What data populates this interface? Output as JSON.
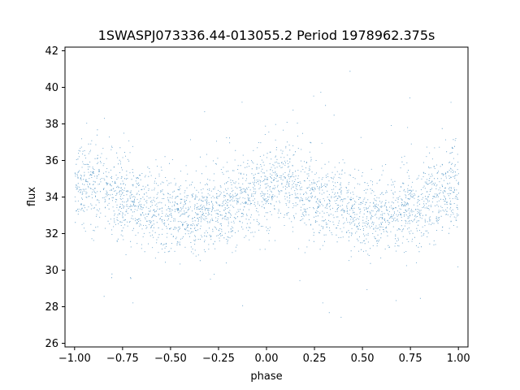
{
  "chart_data": {
    "type": "scatter",
    "title": "1SWASPJ073336.44-013055.2 Period 1978962.375s",
    "xlabel": "phase",
    "ylabel": "flux",
    "xlim": [
      -1.05,
      1.05
    ],
    "ylim": [
      25.8,
      42.2
    ],
    "x_ticks": [
      -1.0,
      -0.75,
      -0.5,
      -0.25,
      0.0,
      0.25,
      0.5,
      0.75,
      1.0
    ],
    "x_tick_labels": [
      "−1.00",
      "−0.75",
      "−0.50",
      "−0.25",
      "0.00",
      "0.25",
      "0.50",
      "0.75",
      "1.00"
    ],
    "y_ticks": [
      26,
      28,
      30,
      32,
      34,
      36,
      38,
      40,
      42
    ],
    "y_tick_labels": [
      "26",
      "28",
      "30",
      "32",
      "34",
      "36",
      "38",
      "40",
      "42"
    ],
    "grid": false,
    "legend": "none",
    "point_color": "#1f77b4",
    "series": [
      {
        "profile": {
          "phase": [
            -1.0,
            -0.9,
            -0.8,
            -0.7,
            -0.6,
            -0.5,
            -0.4,
            -0.3,
            -0.2,
            -0.1,
            0.0,
            0.1,
            0.2,
            0.3,
            0.4,
            0.5,
            0.6,
            0.7,
            0.8,
            0.9,
            1.0
          ],
          "mean_flux": [
            34.6,
            34.8,
            34.2,
            33.7,
            33.6,
            33.1,
            33.0,
            33.2,
            33.6,
            34.0,
            34.6,
            34.8,
            34.2,
            33.7,
            33.6,
            33.1,
            33.0,
            33.2,
            33.6,
            34.0,
            34.6
          ],
          "scatter_sd": [
            1.0,
            1.2,
            1.2,
            1.1,
            1.0,
            1.0,
            1.0,
            1.0,
            1.0,
            1.1,
            1.2,
            1.2,
            1.2,
            1.1,
            1.0,
            1.0,
            1.0,
            1.0,
            1.0,
            1.1,
            1.2
          ]
        },
        "approx_point_count": 12000,
        "x_range": [
          -1.0,
          1.0
        ],
        "y_range": [
          26.5,
          41.5
        ]
      }
    ]
  }
}
